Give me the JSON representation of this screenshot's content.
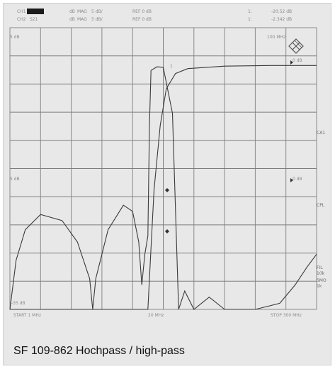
{
  "header": {
    "ch1": "CH1",
    "ch2": "CH2",
    "s21": "S21",
    "db1": "dB",
    "mag1": "MAG",
    "scale1": "5 dB/",
    "ref1": "REF 0 dB",
    "marker1": "1:",
    "marker_val1": "-20.52 dB",
    "db2": "dB",
    "mag2": "MAG",
    "scale2": "5 dB/",
    "ref2": "REF 0 dB",
    "marker2": "1:",
    "marker_val2": "-2.342 dB"
  },
  "chart_data": {
    "type": "line",
    "title": "",
    "xlabel": "",
    "ylabel": "",
    "x_axis": {
      "start_label": "START  1 MHz",
      "center_label": "20 MHz",
      "stop_label": "STOP 300 MHz",
      "range_mhz": [
        1,
        300
      ]
    },
    "marker_freq_label": "100 MHz",
    "marker_top_label": "1",
    "ref_left_label": "5 dB",
    "ref_right_top_label": "0 dB",
    "mid_left_label": "5 dB",
    "mid_right_label": "0 dB",
    "bottom_left_label": "-35 dB",
    "right_labels": [
      "CA1",
      "CPL",
      "FIL",
      "10k",
      "SMO",
      "1k"
    ],
    "series": [
      {
        "values_s21_db": [
          [
            0.0,
            -40.0
          ],
          [
            0.45,
            -40.0
          ],
          [
            0.46,
            -30.0
          ],
          [
            0.47,
            -20.5
          ],
          [
            0.49,
            -10.0
          ],
          [
            0.51,
            -4.0
          ],
          [
            0.54,
            -1.5
          ],
          [
            0.58,
            -0.7
          ],
          [
            0.7,
            -0.3
          ],
          [
            0.85,
            -0.2
          ],
          [
            1.0,
            -0.2
          ]
        ]
      },
      {
        "values_s11_db": [
          [
            0.0,
            -40.0
          ],
          [
            0.02,
            -32.0
          ],
          [
            0.05,
            -27.0
          ],
          [
            0.1,
            -24.5
          ],
          [
            0.17,
            -25.5
          ],
          [
            0.22,
            -29.0
          ],
          [
            0.26,
            -35.0
          ],
          [
            0.27,
            -40.0
          ],
          [
            0.28,
            -35.0
          ],
          [
            0.32,
            -27.0
          ],
          [
            0.37,
            -23.0
          ],
          [
            0.4,
            -24.0
          ],
          [
            0.42,
            -29.0
          ],
          [
            0.43,
            -36.0
          ],
          [
            0.44,
            -31.0
          ],
          [
            0.45,
            -28.0
          ],
          [
            0.455,
            -10.0
          ],
          [
            0.46,
            -1.0
          ],
          [
            0.48,
            -0.4
          ],
          [
            0.5,
            -0.5
          ],
          [
            0.53,
            -8.0
          ],
          [
            0.55,
            -40.0
          ],
          [
            0.57,
            -37.0
          ],
          [
            0.6,
            -40.0
          ],
          [
            0.65,
            -38.0
          ],
          [
            0.7,
            -40.0
          ],
          [
            0.8,
            -40.0
          ],
          [
            0.88,
            -39.0
          ],
          [
            0.93,
            -36.0
          ],
          [
            0.97,
            -33.0
          ],
          [
            1.0,
            -31.0
          ]
        ]
      }
    ],
    "grid": true,
    "ylim": [
      -40,
      0
    ]
  },
  "caption": "SF 109-862 Hochpass / high-pass",
  "logo_icon": "rohde-schwarz-diamond-icon"
}
